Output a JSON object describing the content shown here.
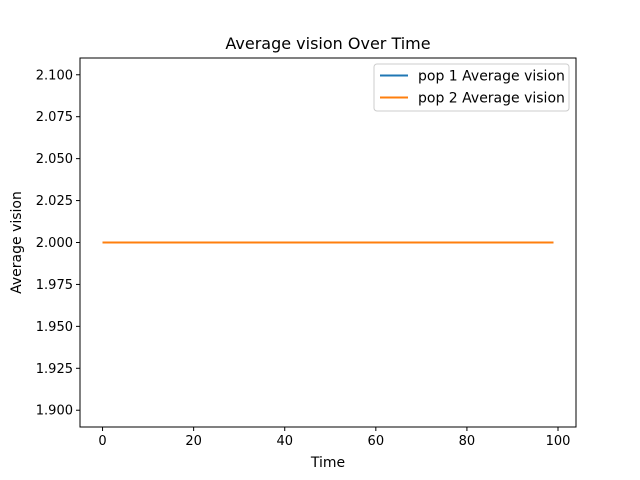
{
  "chart_data": {
    "type": "line",
    "title": "Average vision Over Time",
    "xlabel": "Time",
    "ylabel": "Average vision",
    "xlim": [
      -4.95,
      103.95
    ],
    "ylim": [
      1.89,
      2.11
    ],
    "xticks": [
      0,
      20,
      40,
      60,
      80,
      100
    ],
    "yticks": [
      1.9,
      1.925,
      1.95,
      1.975,
      2.0,
      2.025,
      2.05,
      2.075,
      2.1
    ],
    "xtick_labels": [
      "0",
      "20",
      "40",
      "60",
      "80",
      "100"
    ],
    "ytick_labels": [
      "1.900",
      "1.925",
      "1.950",
      "1.975",
      "2.000",
      "2.025",
      "2.050",
      "2.075",
      "2.100"
    ],
    "grid": false,
    "legend_position": "top-right",
    "series": [
      {
        "name": "pop 1 Average vision",
        "color": "#1f77b4",
        "x": [
          0,
          99
        ],
        "y": [
          2.0,
          2.0
        ]
      },
      {
        "name": "pop 2 Average vision",
        "color": "#ff7f0e",
        "x": [
          0,
          99
        ],
        "y": [
          2.0,
          2.0
        ]
      }
    ]
  }
}
